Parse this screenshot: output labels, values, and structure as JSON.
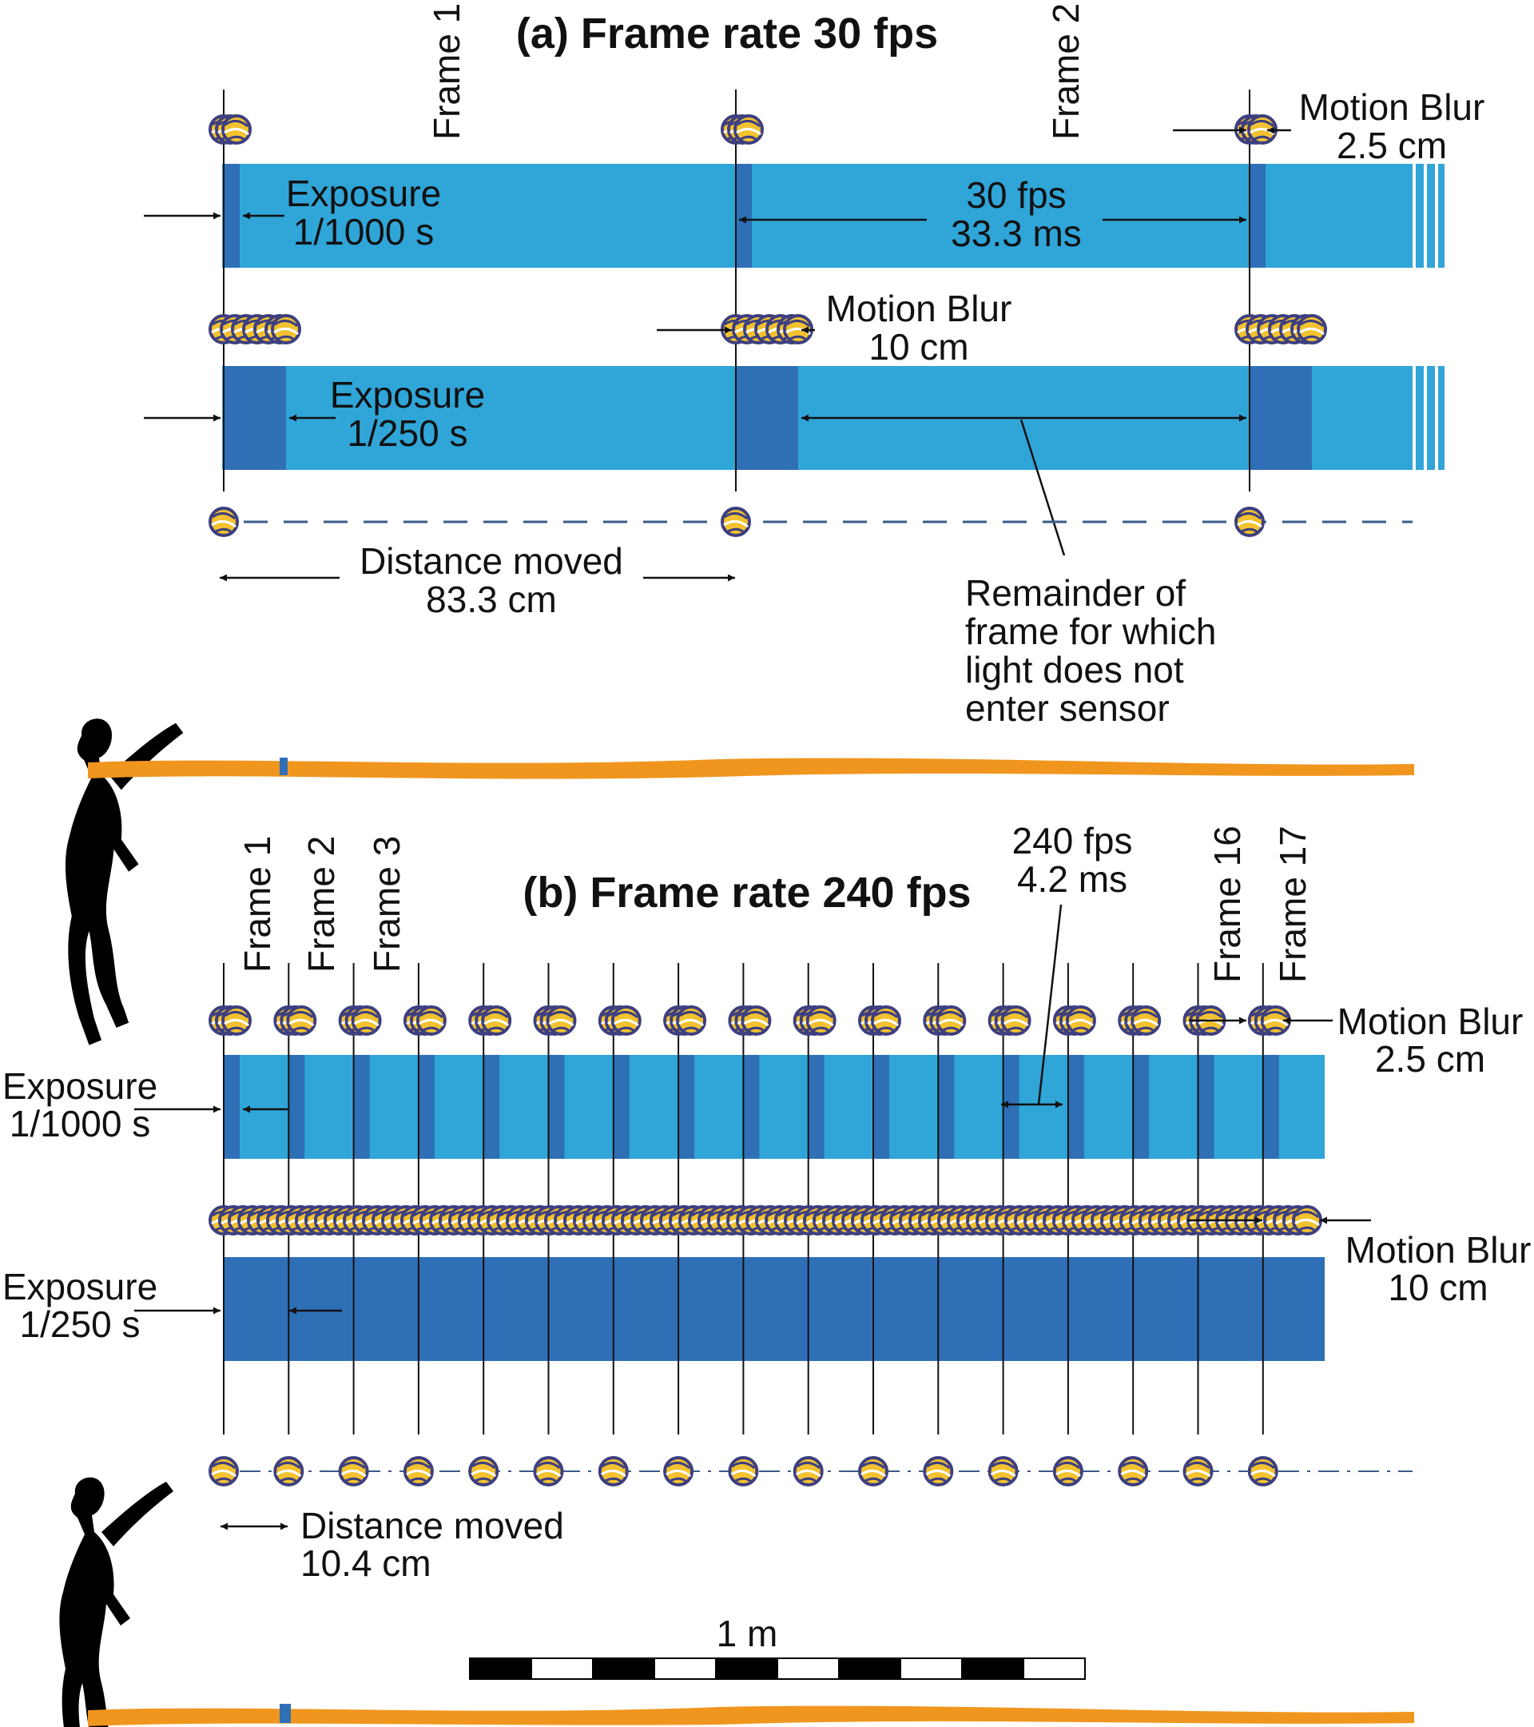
{
  "colors": {
    "bar_light": "#30a5d8",
    "bar_dark": "#2f6fb6",
    "ground": "#f0961e",
    "ball_yellow": "#f2c230",
    "ball_navy": "#3d3f80",
    "silhouette": "#000000"
  },
  "panel_a": {
    "title": "(a) Frame rate 30 fps",
    "frame_labels": [
      "Frame 1",
      "Frame 2"
    ],
    "top_bar": {
      "exposure_label": [
        "Exposure",
        "1/1000 s"
      ],
      "interval_label": [
        "30 fps",
        "33.3 ms"
      ],
      "blur_label": [
        "Motion Blur",
        "2.5 cm"
      ]
    },
    "bottom_bar": {
      "exposure_label": [
        "Exposure",
        "1/250 s"
      ],
      "blur_label": [
        "Motion Blur",
        "10 cm"
      ]
    },
    "distance_label": [
      "Distance moved",
      "83.3 cm"
    ],
    "remainder_label": [
      "Remainder of",
      "frame for which",
      "light does not",
      "enter sensor"
    ]
  },
  "panel_b": {
    "title": "(b) Frame rate 240 fps",
    "frame_labels": [
      "Frame 1",
      "Frame 2",
      "Frame 3",
      "Frame 16",
      "Frame 17"
    ],
    "interval_label": [
      "240 fps",
      "4.2 ms"
    ],
    "top_bar": {
      "exposure_label": [
        "Exposure",
        "1/1000 s"
      ],
      "blur_label": [
        "Motion Blur",
        "2.5 cm"
      ]
    },
    "bottom_bar": {
      "exposure_label": [
        "Exposure",
        "1/250 s"
      ],
      "blur_label": [
        "Motion Blur",
        "10 cm"
      ]
    },
    "distance_label": [
      "Distance moved",
      "10.4 cm"
    ],
    "scale_label": "1 m"
  }
}
